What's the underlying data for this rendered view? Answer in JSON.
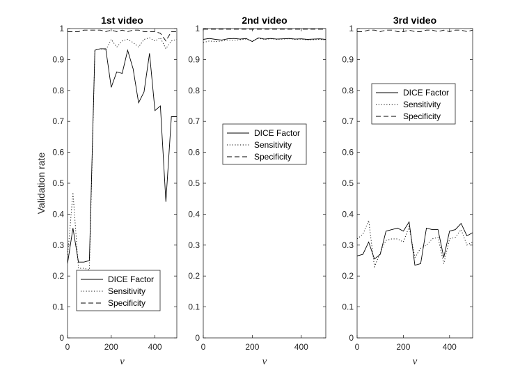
{
  "figure": {
    "ylabel": "Validation rate"
  },
  "chart_data": [
    {
      "type": "line",
      "title": "1st video",
      "xlabel": "ν",
      "ylabel": "Validation rate",
      "xlim": [
        0,
        500
      ],
      "ylim": [
        0,
        1
      ],
      "xticks": [
        0,
        200,
        400
      ],
      "yticks": [
        0,
        0.1,
        0.2,
        0.3,
        0.4,
        0.5,
        0.6,
        0.7,
        0.8,
        0.9,
        1
      ],
      "grid": false,
      "legend_position": "bottom-left",
      "x": [
        0,
        25,
        50,
        75,
        100,
        125,
        150,
        175,
        200,
        225,
        250,
        275,
        300,
        325,
        350,
        375,
        400,
        425,
        450,
        475,
        500
      ],
      "series": [
        {
          "name": "DICE Factor",
          "style": "solid",
          "values": [
            0.24,
            0.355,
            0.245,
            0.245,
            0.25,
            0.93,
            0.935,
            0.935,
            0.81,
            0.86,
            0.855,
            0.93,
            0.87,
            0.76,
            0.795,
            0.92,
            0.735,
            0.75,
            0.44,
            0.715,
            0.715
          ]
        },
        {
          "name": "Sensitivity",
          "style": "dotted",
          "values": [
            0.26,
            0.47,
            0.225,
            0.225,
            0.22,
            0.93,
            0.935,
            0.93,
            0.965,
            0.94,
            0.96,
            0.965,
            0.955,
            0.94,
            0.965,
            0.97,
            0.96,
            0.97,
            0.935,
            0.96,
            0.965
          ]
        },
        {
          "name": "Specificity",
          "style": "dashed",
          "values": [
            0.99,
            0.99,
            0.99,
            0.995,
            0.995,
            0.995,
            0.995,
            0.99,
            0.995,
            0.99,
            0.995,
            0.99,
            0.995,
            0.995,
            0.99,
            0.99,
            0.99,
            0.985,
            0.96,
            0.99,
            0.99
          ]
        }
      ]
    },
    {
      "type": "line",
      "title": "2nd video",
      "xlabel": "ν",
      "ylabel": "",
      "xlim": [
        0,
        500
      ],
      "ylim": [
        0,
        1
      ],
      "xticks": [
        0,
        200,
        400
      ],
      "yticks": [
        0,
        0.1,
        0.2,
        0.3,
        0.4,
        0.5,
        0.6,
        0.7,
        0.8,
        0.9,
        1
      ],
      "grid": false,
      "legend_position": "middle-left",
      "x": [
        0,
        25,
        50,
        75,
        100,
        125,
        150,
        175,
        200,
        225,
        250,
        275,
        300,
        325,
        350,
        375,
        400,
        425,
        450,
        475,
        500
      ],
      "series": [
        {
          "name": "DICE Factor",
          "style": "solid",
          "values": [
            0.965,
            0.968,
            0.965,
            0.963,
            0.967,
            0.968,
            0.966,
            0.968,
            0.958,
            0.97,
            0.966,
            0.968,
            0.966,
            0.967,
            0.968,
            0.966,
            0.967,
            0.965,
            0.966,
            0.967,
            0.965
          ]
        },
        {
          "name": "Sensitivity",
          "style": "dotted",
          "values": [
            0.955,
            0.96,
            0.958,
            0.96,
            0.963,
            0.962,
            0.964,
            0.966,
            0.96,
            0.968,
            0.965,
            0.967,
            0.965,
            0.966,
            0.967,
            0.965,
            0.966,
            0.963,
            0.964,
            0.965,
            0.963
          ]
        },
        {
          "name": "Specificity",
          "style": "dashed",
          "values": [
            0.998,
            0.998,
            0.998,
            0.998,
            0.998,
            0.998,
            0.998,
            0.998,
            0.998,
            0.998,
            0.998,
            0.998,
            0.998,
            0.998,
            0.998,
            0.998,
            0.998,
            0.998,
            0.998,
            0.998,
            0.998
          ]
        }
      ]
    },
    {
      "type": "line",
      "title": "3rd video",
      "xlabel": "ν",
      "ylabel": "",
      "xlim": [
        0,
        500
      ],
      "ylim": [
        0,
        1
      ],
      "xticks": [
        0,
        200,
        400
      ],
      "yticks": [
        0,
        0.1,
        0.2,
        0.3,
        0.4,
        0.5,
        0.6,
        0.7,
        0.8,
        0.9,
        1
      ],
      "grid": false,
      "legend_position": "upper-left",
      "x": [
        0,
        25,
        50,
        75,
        100,
        125,
        150,
        175,
        200,
        225,
        250,
        275,
        300,
        325,
        350,
        375,
        400,
        425,
        450,
        475,
        500
      ],
      "series": [
        {
          "name": "DICE Factor",
          "style": "solid",
          "values": [
            0.265,
            0.27,
            0.31,
            0.255,
            0.27,
            0.345,
            0.35,
            0.355,
            0.345,
            0.375,
            0.235,
            0.24,
            0.355,
            0.35,
            0.35,
            0.26,
            0.345,
            0.35,
            0.37,
            0.33,
            0.34
          ]
        },
        {
          "name": "Sensitivity",
          "style": "dotted",
          "values": [
            0.32,
            0.335,
            0.38,
            0.23,
            0.275,
            0.315,
            0.32,
            0.32,
            0.31,
            0.36,
            0.26,
            0.29,
            0.3,
            0.32,
            0.325,
            0.24,
            0.32,
            0.325,
            0.35,
            0.3,
            0.31
          ]
        },
        {
          "name": "Specificity",
          "style": "dashed",
          "values": [
            0.99,
            0.99,
            0.995,
            0.995,
            0.99,
            0.995,
            0.995,
            0.99,
            0.99,
            0.995,
            0.99,
            0.99,
            0.995,
            0.995,
            0.99,
            0.995,
            0.99,
            0.995,
            0.995,
            0.99,
            0.995
          ]
        }
      ]
    }
  ]
}
